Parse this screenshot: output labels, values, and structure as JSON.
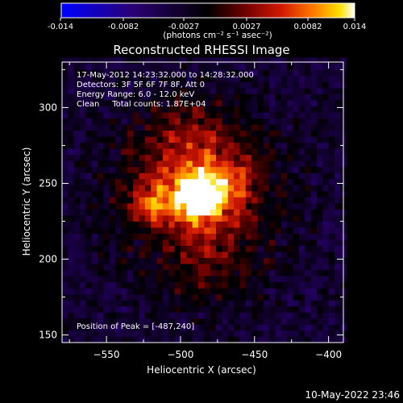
{
  "colorbar": {
    "ticks": [
      "-0.014",
      "-0.0082",
      "-0.0027",
      "0.0027",
      "0.0082",
      "0.014"
    ],
    "unit_label": "(photons cm⁻² s⁻¹ asec⁻²)",
    "range": [
      -0.014,
      0.014
    ],
    "colors": [
      "#0000ff",
      "#200060",
      "#000000",
      "#5a0000",
      "#c81400",
      "#ff6a00",
      "#ffd800",
      "#ffffff"
    ]
  },
  "footer": {
    "timestamp": "10-May-2022 23:46"
  },
  "chart_data": {
    "type": "heatmap",
    "title": "Reconstructed RHESSI Image",
    "xlabel": "Heliocentric X (arcsec)",
    "ylabel": "Heliocentric Y (arcsec)",
    "xlim": [
      -580,
      -390
    ],
    "ylim": [
      145,
      330
    ],
    "xticks": [
      -550,
      -500,
      -450,
      -400
    ],
    "yticks": [
      150,
      200,
      250,
      300
    ],
    "annotations": [
      "17-May-2012 14:23:32.000 to 14:28:32.000",
      "Detectors: 3F 5F 6F 7F 8F, Att 0",
      "Energy Range: 6.0 - 12.0 keV",
      "Clean     Total counts: 1.87E+04"
    ],
    "peak_label": "Position of Peak = [-487,240]",
    "peak_position": [
      -487,
      240
    ],
    "grid": false,
    "sources": [
      {
        "x": -487,
        "y": 240,
        "intensity": 0.014,
        "size": 14
      },
      {
        "x": -470,
        "y": 248,
        "intensity": 0.008,
        "size": 22
      },
      {
        "x": -510,
        "y": 238,
        "intensity": 0.007,
        "size": 20
      },
      {
        "x": -525,
        "y": 235,
        "intensity": 0.005,
        "size": 10
      },
      {
        "x": -495,
        "y": 270,
        "intensity": 0.006,
        "size": 30
      },
      {
        "x": -480,
        "y": 205,
        "intensity": 0.004,
        "size": 25
      }
    ]
  }
}
